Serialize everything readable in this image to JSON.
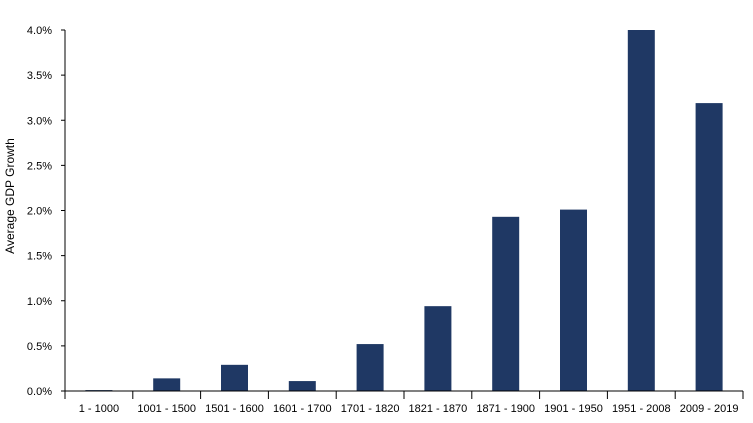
{
  "chart_data": {
    "type": "bar",
    "title": "",
    "xlabel": "",
    "ylabel": "Average GDP Growth",
    "categories": [
      "1 - 1000",
      "1001 - 1500",
      "1501 - 1600",
      "1601 - 1700",
      "1701 - 1820",
      "1821 - 1870",
      "1871 - 1900",
      "1901 - 1950",
      "1951 - 2008",
      "2009 - 2019"
    ],
    "values": [
      0.01,
      0.14,
      0.29,
      0.11,
      0.52,
      0.94,
      1.93,
      2.01,
      4.0,
      3.19
    ],
    "ylim": [
      0,
      4.0
    ],
    "yticks": [
      "0.0%",
      "0.5%",
      "1.0%",
      "1.5%",
      "2.0%",
      "2.5%",
      "3.0%",
      "3.5%",
      "4.0%"
    ],
    "grid": false,
    "legend": "none",
    "bar_color": "#1f3864"
  }
}
